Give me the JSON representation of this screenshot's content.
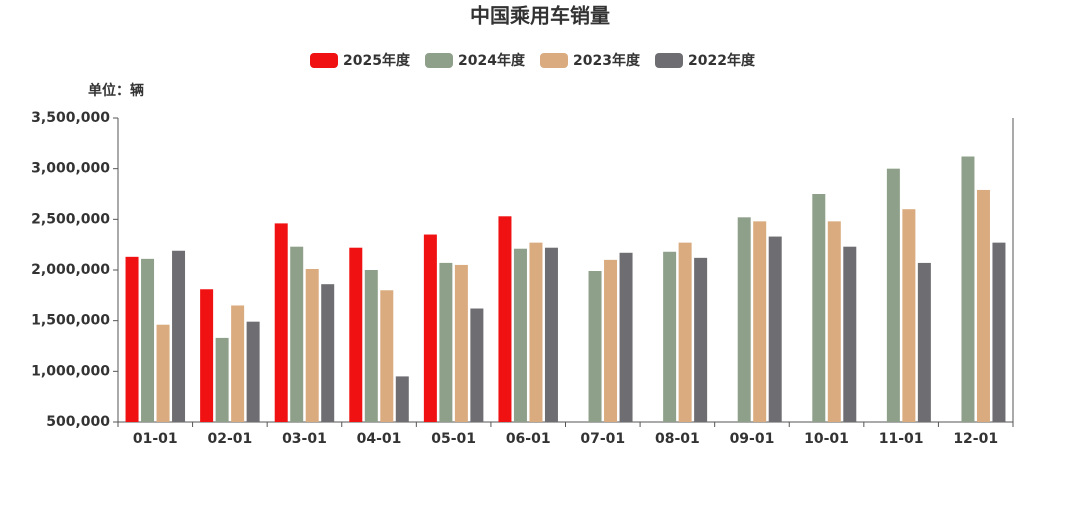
{
  "chart_data": {
    "type": "bar",
    "title": "中国乘用车销量",
    "unit": "单位：辆",
    "categories": [
      "01-01",
      "02-01",
      "03-01",
      "04-01",
      "05-01",
      "06-01",
      "07-01",
      "08-01",
      "09-01",
      "10-01",
      "11-01",
      "12-01"
    ],
    "series": [
      {
        "name": "2025年度",
        "color": "#f01212",
        "values": [
          2130000,
          1810000,
          2460000,
          2220000,
          2350000,
          2530000,
          null,
          null,
          null,
          null,
          null,
          null
        ]
      },
      {
        "name": "2024年度",
        "color": "#8fa08a",
        "values": [
          2110000,
          1330000,
          2230000,
          2000000,
          2070000,
          2210000,
          1990000,
          2180000,
          2520000,
          2750000,
          3000000,
          3120000
        ]
      },
      {
        "name": "2023年度",
        "color": "#d9ab7e",
        "values": [
          1460000,
          1650000,
          2010000,
          1800000,
          2050000,
          2270000,
          2100000,
          2270000,
          2480000,
          2480000,
          2600000,
          2790000
        ]
      },
      {
        "name": "2022年度",
        "color": "#6e6e72",
        "values": [
          2190000,
          1490000,
          1860000,
          950000,
          1620000,
          2220000,
          2170000,
          2120000,
          2330000,
          2230000,
          2070000,
          2270000
        ]
      }
    ],
    "ylim": [
      500000,
      3500000
    ],
    "yticks": [
      {
        "value": 500000,
        "label": "500,000"
      },
      {
        "value": 1000000,
        "label": "1,000,000"
      },
      {
        "value": 1500000,
        "label": "1,500,000"
      },
      {
        "value": 2000000,
        "label": "2,000,000"
      },
      {
        "value": 2500000,
        "label": "2,500,000"
      },
      {
        "value": 3000000,
        "label": "3,000,000"
      },
      {
        "value": 3500000,
        "label": "3,500,000"
      }
    ],
    "grid": false,
    "legend": "top"
  }
}
